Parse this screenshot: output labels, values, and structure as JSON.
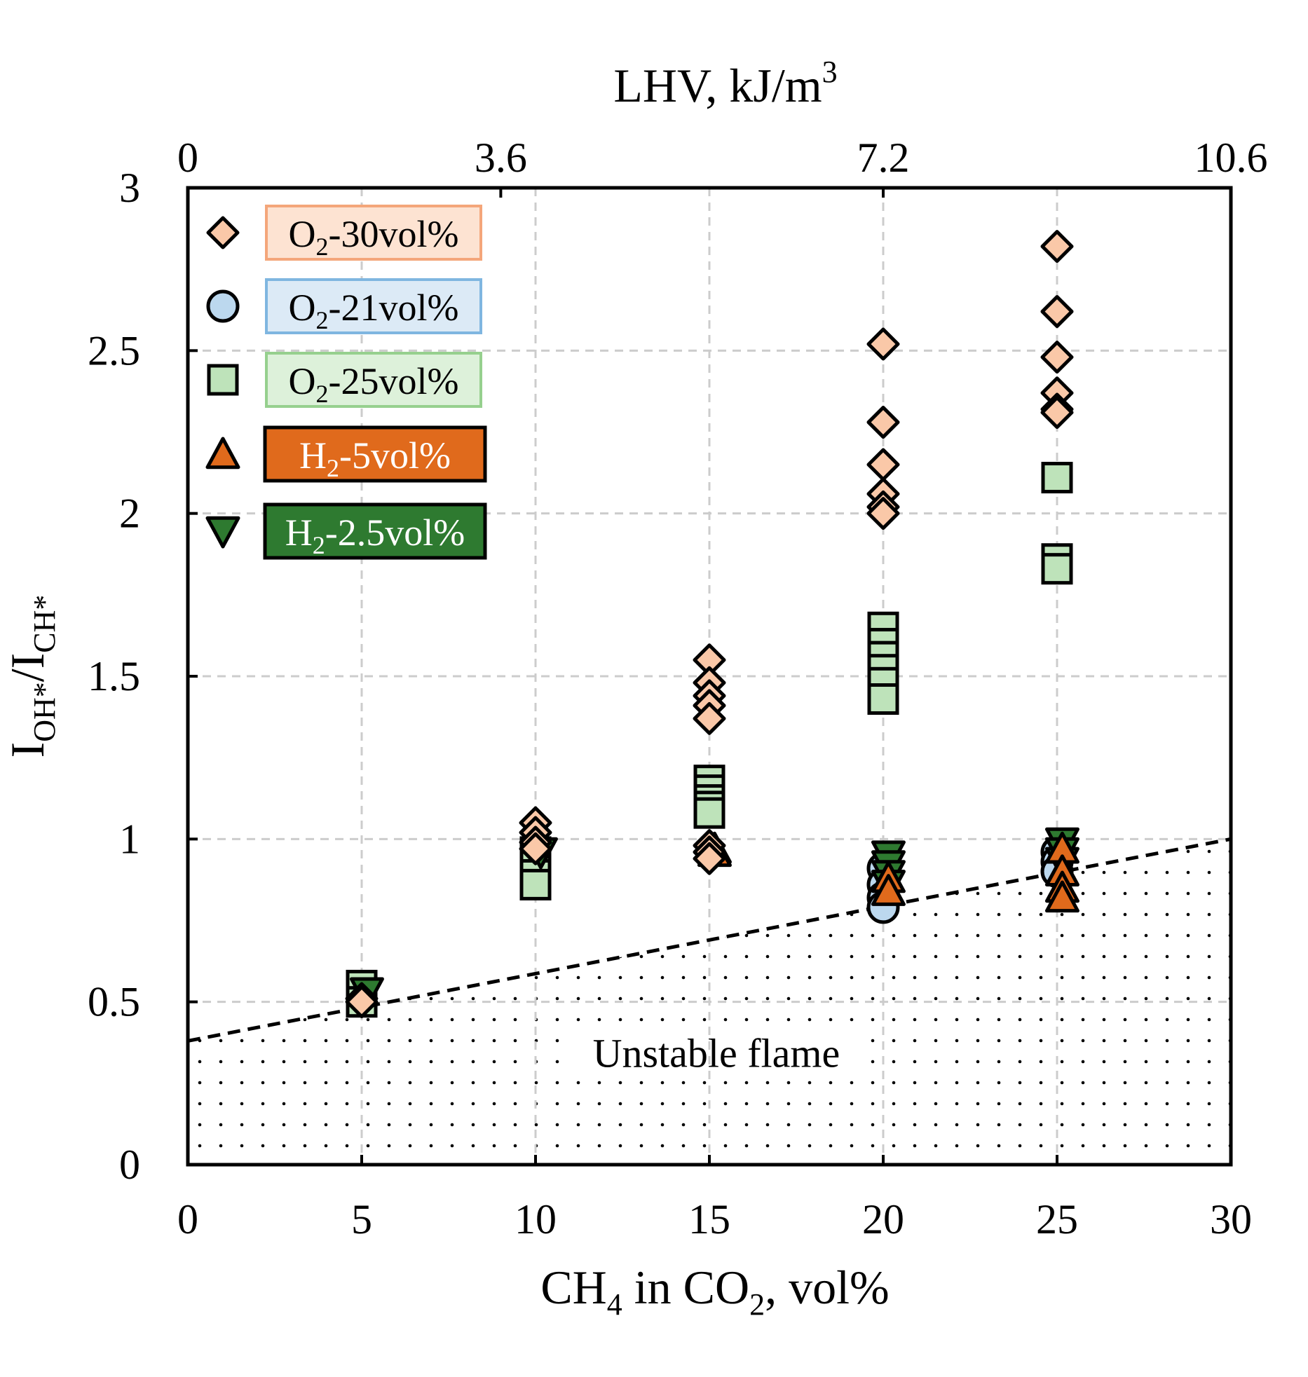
{
  "chart_data": {
    "type": "scatter",
    "title": "",
    "xlabel": {
      "base": "CH",
      "sub1": "4",
      "mid": " in CO",
      "sub2": "2",
      "tail": ", vol%"
    },
    "ylabel": {
      "I1": "I",
      "sub1": "OH*",
      "slash": "/I",
      "sub2": "CH*"
    },
    "top_axis": {
      "label": "LHV, kJ/m",
      "label_sup": "3",
      "ticks": [
        {
          "x": 0,
          "label": "0"
        },
        {
          "x": 9,
          "label": "3.6"
        },
        {
          "x": 20,
          "label": "7.2"
        },
        {
          "x": 30,
          "label": "10.6"
        }
      ]
    },
    "xlim": [
      0,
      30
    ],
    "ylim": [
      0,
      3
    ],
    "xticks": [
      0,
      5,
      10,
      15,
      20,
      25,
      30
    ],
    "xtick_labels": [
      "0",
      "5",
      "10",
      "15",
      "20",
      "25",
      "30"
    ],
    "yticks": [
      0,
      0.5,
      1,
      1.5,
      2,
      2.5,
      3
    ],
    "ytick_labels": [
      "0",
      "0.5",
      "1",
      "1.5",
      "2",
      "2.5",
      "3"
    ],
    "grid": true,
    "legend_position": "top-left",
    "threshold_line": {
      "style": "dashed",
      "x": [
        0,
        30
      ],
      "y": [
        0.38,
        1.0
      ]
    },
    "region_annotation": "Unstable flame",
    "series": [
      {
        "name": "O2-30vol%",
        "legend": {
          "base": "O",
          "sub": "2",
          "rest": "-30vol%"
        },
        "marker": "diamond",
        "fill": "#FAC8A8",
        "legend_bg": "#FDE3D2",
        "legend_border": "#F4A67A",
        "legend_text": "#000000",
        "x": [
          5,
          5,
          10,
          10,
          10,
          10,
          15,
          15,
          15,
          15,
          15,
          15,
          15,
          15,
          20,
          20,
          20,
          20,
          20,
          20,
          25,
          25,
          25,
          25,
          25,
          25
        ],
        "y": [
          0.51,
          0.5,
          1.05,
          1.02,
          0.99,
          0.97,
          1.55,
          1.48,
          1.44,
          1.41,
          1.37,
          0.98,
          0.96,
          0.94,
          2.52,
          2.28,
          2.15,
          2.06,
          2.02,
          2.0,
          2.82,
          2.62,
          2.48,
          2.37,
          2.32,
          2.31
        ]
      },
      {
        "name": "O2-21vol%",
        "legend": {
          "base": "O",
          "sub": "2",
          "rest": "-21vol%"
        },
        "marker": "circle",
        "fill": "#BCD8EE",
        "legend_bg": "#DCEAF6",
        "legend_border": "#7FB6E0",
        "legend_text": "#000000",
        "x": [
          20,
          20,
          20,
          20,
          25,
          25,
          25
        ],
        "y": [
          0.91,
          0.86,
          0.82,
          0.79,
          0.96,
          0.93,
          0.9
        ]
      },
      {
        "name": "O2-25vol%",
        "legend": {
          "base": "O",
          "sub": "2",
          "rest": "-25vol%"
        },
        "marker": "square",
        "fill": "#BEE3BA",
        "legend_bg": "#DDF1DA",
        "legend_border": "#96D08E",
        "legend_text": "#000000",
        "x": [
          5,
          5,
          10,
          10,
          10,
          10,
          15,
          15,
          15,
          15,
          15,
          20,
          20,
          20,
          20,
          20,
          20,
          25,
          25,
          25
        ],
        "y": [
          0.55,
          0.5,
          0.96,
          0.93,
          0.89,
          0.86,
          1.18,
          1.15,
          1.12,
          1.1,
          1.08,
          1.65,
          1.6,
          1.56,
          1.52,
          1.48,
          1.43,
          2.11,
          1.86,
          1.83
        ]
      },
      {
        "name": "H2-5vol%",
        "legend": {
          "base": "H",
          "sub": "2",
          "rest": "-5vol%"
        },
        "marker": "triangle-up",
        "fill": "#E06A1C",
        "legend_bg": "#E06A1C",
        "legend_border": "#000000",
        "legend_text": "#ffffff",
        "x": [
          15,
          15,
          20,
          20,
          25,
          25,
          25,
          25
        ],
        "y": [
          0.97,
          0.96,
          0.88,
          0.84,
          0.97,
          0.9,
          0.85,
          0.82
        ]
      },
      {
        "name": "H2-2.5vol%",
        "legend": {
          "base": "H",
          "sub": "2",
          "rest": "-2.5vol%"
        },
        "marker": "triangle-down",
        "fill": "#2E7A30",
        "legend_bg": "#2E7A30",
        "legend_border": "#000000",
        "legend_text": "#ffffff",
        "x": [
          5,
          10,
          20,
          20,
          20,
          20,
          25,
          25,
          25
        ],
        "y": [
          0.53,
          0.96,
          0.95,
          0.92,
          0.89,
          0.86,
          0.99,
          0.96,
          0.93
        ]
      }
    ]
  }
}
